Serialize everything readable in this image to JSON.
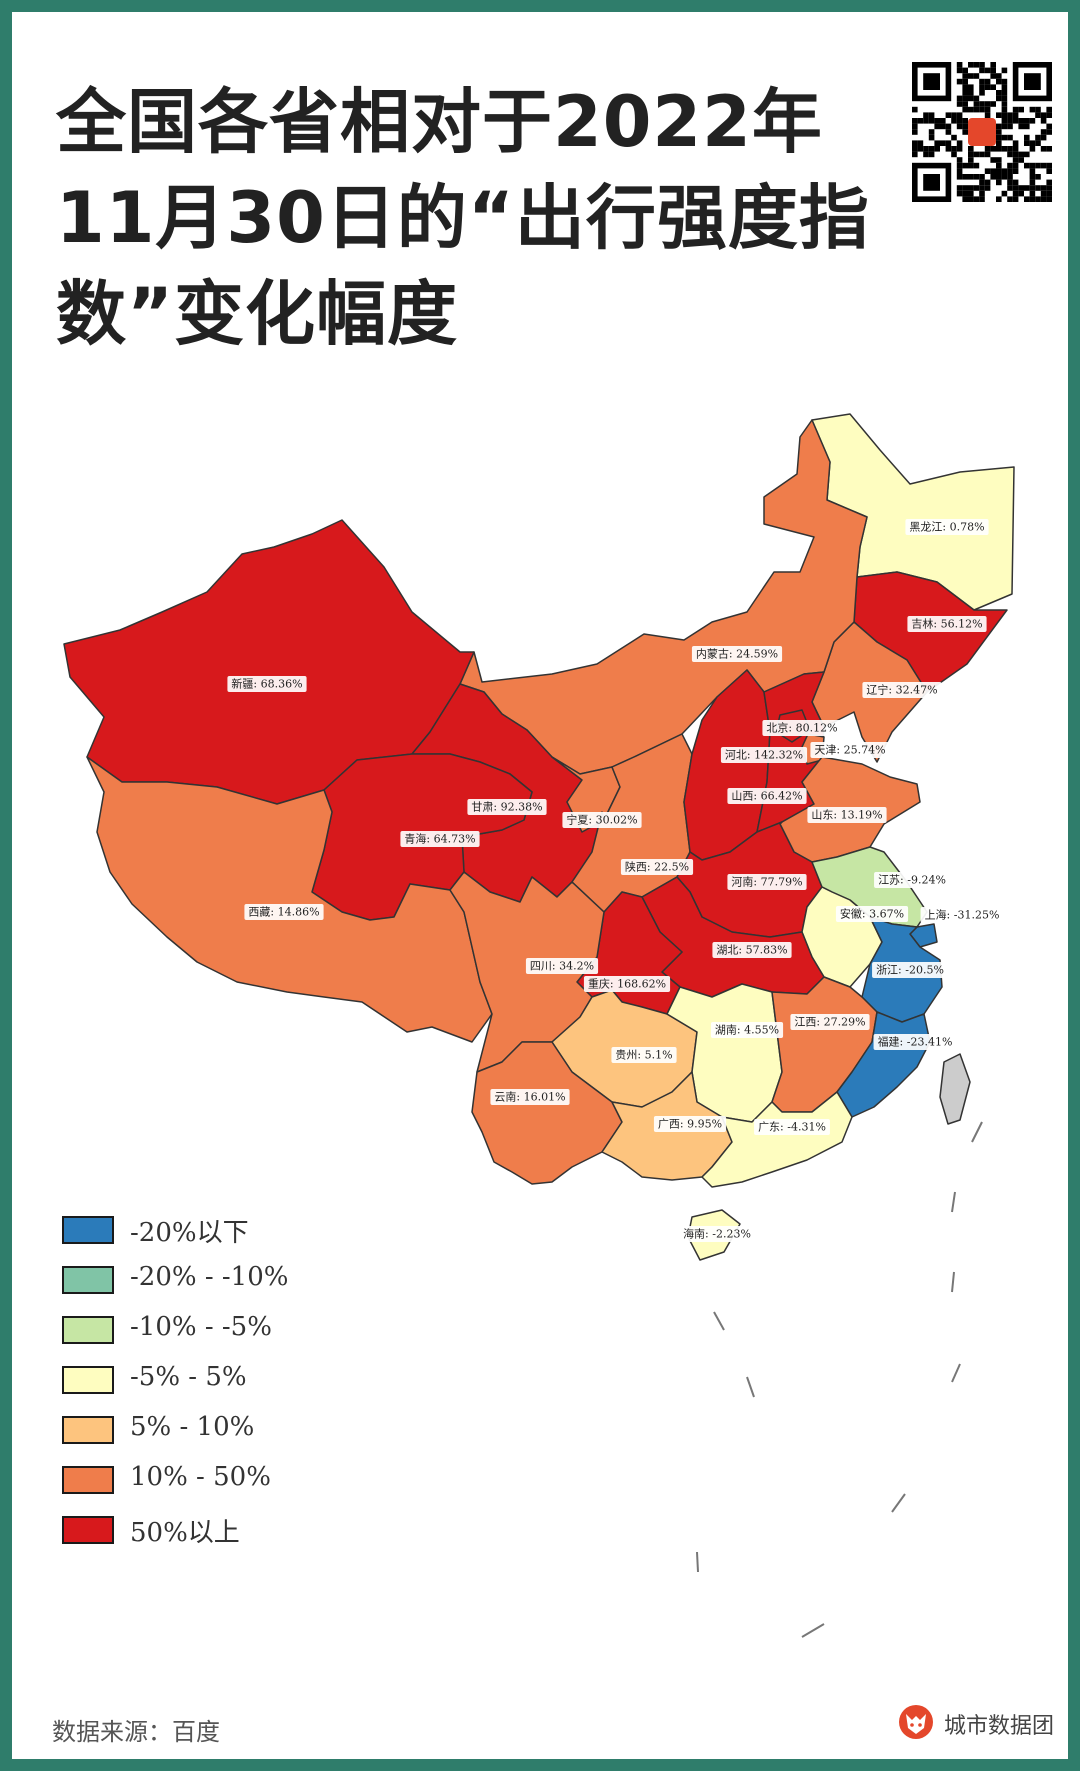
{
  "title_lines": [
    "全国各省相对于2022年",
    "11月30日的“出行强度指",
    "数”变化幅度"
  ],
  "colors": {
    "below_minus20": "#2b7bba",
    "minus20_minus10": "#80c4a6",
    "minus10_minus5": "#c6e6a4",
    "minus5_5": "#fefdc0",
    "5_10": "#fdc47e",
    "10_50": "#ef7d4b",
    "above50": "#d7191c",
    "border": "#333333",
    "frame": "#2f7d6b"
  },
  "legend": [
    {
      "label": "-20%以下",
      "color": "#2b7bba"
    },
    {
      "label": "-20%  -  -10%",
      "color": "#80c4a6"
    },
    {
      "label": "-10%  -  -5%",
      "color": "#c6e6a4"
    },
    {
      "label": "-5%  -  5%",
      "color": "#fefdc0"
    },
    {
      "label": "5%  -  10%",
      "color": "#fdc47e"
    },
    {
      "label": "10%  -  50%",
      "color": "#ef7d4b"
    },
    {
      "label": "50%以上",
      "color": "#d7191c"
    }
  ],
  "provinces": [
    {
      "name": "黑龙江",
      "change_pct": 0.78,
      "label": "黑龙江: 0.78%"
    },
    {
      "name": "吉林",
      "change_pct": 56.12,
      "label": "吉林: 56.12%"
    },
    {
      "name": "辽宁",
      "change_pct": 32.47,
      "label": "辽宁: 32.47%"
    },
    {
      "name": "内蒙古",
      "change_pct": 24.59,
      "label": "内蒙古: 24.59%"
    },
    {
      "name": "新疆",
      "change_pct": 68.36,
      "label": "新疆: 68.36%"
    },
    {
      "name": "北京",
      "change_pct": 80.12,
      "label": "北京: 80.12%"
    },
    {
      "name": "河北",
      "change_pct": 142.32,
      "label": "河北: 142.32%"
    },
    {
      "name": "天津",
      "change_pct": 25.74,
      "label": "天津: 25.74%"
    },
    {
      "name": "山西",
      "change_pct": 66.42,
      "label": "山西: 66.42%"
    },
    {
      "name": "甘肃",
      "change_pct": 92.38,
      "label": "甘肃: 92.38%"
    },
    {
      "name": "宁夏",
      "change_pct": 30.02,
      "label": "宁夏: 30.02%"
    },
    {
      "name": "山东",
      "change_pct": 13.19,
      "label": "山东: 13.19%"
    },
    {
      "name": "青海",
      "change_pct": 64.73,
      "label": "青海: 64.73%"
    },
    {
      "name": "陕西",
      "change_pct": 22.5,
      "label": "陕西: 22.5%"
    },
    {
      "name": "江苏",
      "change_pct": -9.24,
      "label": "江苏: -9.24%"
    },
    {
      "name": "河南",
      "change_pct": 77.79,
      "label": "河南: 77.79%"
    },
    {
      "name": "西藏",
      "change_pct": 14.86,
      "label": "西藏: 14.86%"
    },
    {
      "name": "安徽",
      "change_pct": 3.67,
      "label": "安徽: 3.67%"
    },
    {
      "name": "上海",
      "change_pct": -31.25,
      "label": "上海: -31.25%"
    },
    {
      "name": "湖北",
      "change_pct": 57.83,
      "label": "湖北: 57.83%"
    },
    {
      "name": "四川",
      "change_pct": 34.2,
      "label": "四川: 34.2%"
    },
    {
      "name": "浙江",
      "change_pct": -20.5,
      "label": "浙江: -20.5%"
    },
    {
      "name": "重庆",
      "change_pct": 168.62,
      "label": "重庆: 168.62%"
    },
    {
      "name": "湖南",
      "change_pct": 4.55,
      "label": "湖南: 4.55%"
    },
    {
      "name": "江西",
      "change_pct": 27.29,
      "label": "江西: 27.29%"
    },
    {
      "name": "贵州",
      "change_pct": 5.1,
      "label": "贵州: 5.1%"
    },
    {
      "name": "福建",
      "change_pct": -23.41,
      "label": "福建: -23.41%"
    },
    {
      "name": "云南",
      "change_pct": 16.01,
      "label": "云南: 16.01%"
    },
    {
      "name": "广西",
      "change_pct": 9.95,
      "label": "广西: 9.95%"
    },
    {
      "name": "广东",
      "change_pct": -4.31,
      "label": "广东: -4.31%"
    },
    {
      "name": "海南",
      "change_pct": -2.23,
      "label": "海南: -2.23%"
    }
  ],
  "source": "数据来源：百度",
  "brand": {
    "name": "城市数据团",
    "logo_icon": "fox-logo-icon",
    "qr_icon": "qr-code-icon"
  }
}
